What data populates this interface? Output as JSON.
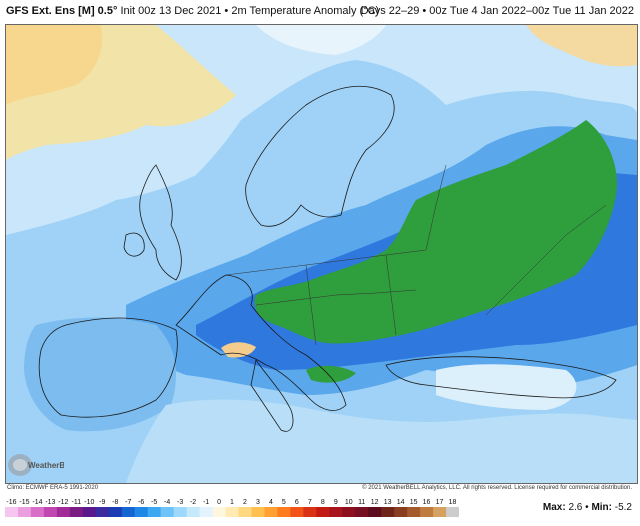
{
  "header": {
    "model": "GFS Ext. Ens [M] 0.5°",
    "init": "Init 00z 13 Dec 2021",
    "sep": "•",
    "variable": "2m Temperature Anomaly (°C)",
    "valid": "Days 22–29 • 00z Tue 4 Jan 2022–00z Tue 11 Jan 2022"
  },
  "credits": {
    "climo": "Climo: ECMWF ERA-5 1991-2020",
    "copyright": "© 2021 WeatherBELL Analytics, LLC. All rights reserved. License required for commercial distribution.",
    "logo_text": "WeatherBELL"
  },
  "colorbar": {
    "labels": [
      "-16",
      "-15",
      "-14",
      "-13",
      "-12",
      "-11",
      "-10",
      "-9",
      "-8",
      "-7",
      "-6",
      "-5",
      "-4",
      "-3",
      "-2",
      "-1",
      "0",
      "1",
      "2",
      "3",
      "4",
      "5",
      "6",
      "7",
      "8",
      "9",
      "10",
      "11",
      "12",
      "13",
      "14",
      "15",
      "16",
      "17",
      "18"
    ],
    "colors": [
      "#f7c6f0",
      "#eb9ee0",
      "#d86ec8",
      "#c046b0",
      "#a02a98",
      "#7a1c84",
      "#5a1a8c",
      "#3c2aa0",
      "#1c3cb4",
      "#1464d2",
      "#1e88e6",
      "#3ca8f2",
      "#6ec4f8",
      "#9ed8fa",
      "#c4e8fc",
      "#e2f4fd",
      "#fff6e0",
      "#ffeab4",
      "#ffd880",
      "#ffc050",
      "#ffa030",
      "#ff7c1e",
      "#f25418",
      "#dc3214",
      "#c41a14",
      "#a8141c",
      "#8c1020",
      "#741022",
      "#5c0c1e",
      "#6e2418",
      "#8a3c20",
      "#a45a2c",
      "#be7c40",
      "#d6a060"
    ],
    "neg_extra_colors": [
      "#2a9e3c",
      "#5cc04e",
      "#8ed66c"
    ]
  },
  "stats": {
    "max_label": "Max:",
    "max_value": "2.6",
    "sep": "•",
    "min_label": "Min:",
    "min_value": "-5.2"
  },
  "map": {
    "region": "Europe",
    "legend_colors": {
      "ocean_light": "#cfe9fb",
      "pale_blue": "#a9d7f7",
      "mid_blue": "#6fb4ee",
      "deep_blue": "#3f86e0",
      "strong_blue": "#1e5fd2",
      "green": "#2f9e3c",
      "tan": "#f3e3a6",
      "peach": "#f6c58e"
    }
  }
}
